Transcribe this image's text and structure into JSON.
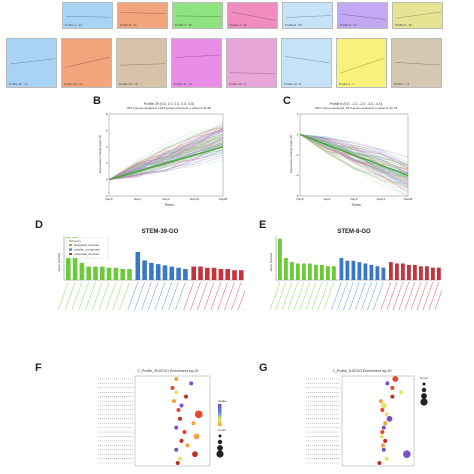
{
  "panels": {
    "A_tiles": [
      {
        "label": "Profile 1 : 14",
        "color": "#a9d3f5",
        "row": 0
      },
      {
        "label": "Profile 8 : 21",
        "color": "#f3a47c",
        "row": 0
      },
      {
        "label": "Profile 3 : 19",
        "color": "#8ee27f",
        "row": 0
      },
      {
        "label": "Profile 4 : 22",
        "color": "#f08cbf",
        "row": 0
      },
      {
        "label": "Profile 9 : 20",
        "color": "#c6e2f7",
        "row": 0
      },
      {
        "label": "Profile 5 : 17",
        "color": "#c3a9f3",
        "row": 0
      },
      {
        "label": "Profile 6 : 15",
        "color": "#e6e393",
        "row": 0
      },
      {
        "label": "Profile 15 : 12",
        "color": "#a9d3f5",
        "row": 1
      },
      {
        "label": "Profile 16 : 11",
        "color": "#f3a47c",
        "row": 1
      },
      {
        "label": "Profile 10 : 13",
        "color": "#d7c3a8",
        "row": 1
      },
      {
        "label": "Profile 11 : 10",
        "color": "#ea8de7",
        "row": 1
      },
      {
        "label": "Profile 12 : 9",
        "color": "#e8a6d8",
        "row": 1
      },
      {
        "label": "Profile 13 : 8",
        "color": "#c6e2f7",
        "row": 1
      },
      {
        "label": "Profile 2 : 7",
        "color": "#f6f27a",
        "row": 1
      },
      {
        "label": "Profile 7 : 6",
        "color": "#d6c7b3",
        "row": 1
      }
    ],
    "B": {
      "letter": "B",
      "title": "Profile 39 (0.0, 1.0, 2.0, 3.0, 4.0)",
      "subtitle": "202.0 genes assigned; 103.0 genes expected; p-value=1.2e-68",
      "ylabel": "Expression change (log2 v0)",
      "xlabel": "Times",
      "xticks": [
        "Day0",
        "Day1",
        "Day2",
        "Day14",
        "Day28"
      ],
      "yticks": [
        "-2",
        "0",
        "2",
        "4",
        "6",
        "8"
      ]
    },
    "C": {
      "letter": "C",
      "title": "Profile 8 (0.0, -1.0, -2.0, -3.0, -4.0)",
      "subtitle": "225.0 genes assigned; 52.0 genes expected; p-value=1.3e-75",
      "ylabel": "Expression change (log2 v0)",
      "xlabel": "Times",
      "xticks": [
        "Day0",
        "Day1",
        "Day2",
        "Day14",
        "Day28"
      ],
      "yticks": [
        "2",
        "0",
        "-2",
        "-4",
        "-6"
      ]
    },
    "D": {
      "letter": "D",
      "title": "STEM-39-GO",
      "ylabel": "Gene Number",
      "legend": [
        "GO term",
        "biological_process",
        "cellular_component",
        "molecular_function"
      ]
    },
    "E": {
      "letter": "E",
      "title": "STEM-8-GO",
      "ylabel": "Gene Number"
    },
    "F": {
      "letter": "F",
      "title": "C_Profile_39-KEGG Enrichment top 20",
      "legend_color_title": "qvalue",
      "legend_size_title": "Count"
    },
    "G": {
      "letter": "G",
      "title": "C_Profile_8-KEGG Enrichment top 20",
      "legend_size_title": "Count"
    }
  },
  "colors": {
    "bp": "#6cc93c",
    "cc": "#3b78c4",
    "mf": "#c8323a",
    "trend": "#47a62f"
  },
  "chart_data": [
    {
      "type": "line",
      "panel": "B",
      "x": [
        "Day0",
        "Day1",
        "Day2",
        "Day14",
        "Day28"
      ],
      "ylim": [
        -2,
        8
      ],
      "series": [
        {
          "values": [
            0,
            1,
            2,
            3,
            4
          ]
        }
      ]
    },
    {
      "type": "line",
      "panel": "C",
      "x": [
        "Day0",
        "Day1",
        "Day2",
        "Day14",
        "Day28"
      ],
      "ylim": [
        -6,
        2
      ],
      "series": [
        {
          "values": [
            0,
            -1,
            -2,
            -3,
            -4
          ]
        }
      ]
    },
    {
      "type": "bar",
      "panel": "D",
      "title": "STEM-39-GO",
      "groups": [
        {
          "name": "biological_process",
          "values": [
            35,
            35,
            14,
            11,
            11,
            11,
            10,
            10,
            9,
            9
          ]
        },
        {
          "name": "cellular_component",
          "values": [
            23,
            16,
            14,
            13,
            12,
            11,
            10,
            9
          ]
        },
        {
          "name": "molecular_function",
          "values": [
            11,
            11,
            10,
            10,
            9,
            9,
            8,
            8,
            8,
            7
          ]
        }
      ],
      "ylim": [
        0,
        36
      ]
    },
    {
      "type": "bar",
      "panel": "E",
      "title": "STEM-8-GO",
      "groups": [
        {
          "name": "biological_process",
          "values": [
            30,
            16,
            13,
            12,
            12,
            12,
            11,
            11,
            10,
            10
          ]
        },
        {
          "name": "cellular_component",
          "values": [
            16,
            14,
            14,
            13,
            12,
            11,
            10,
            9
          ]
        },
        {
          "name": "molecular_function",
          "values": [
            13,
            12,
            12,
            11,
            11,
            10,
            10,
            9,
            9,
            8
          ]
        }
      ],
      "ylim": [
        0,
        32
      ]
    },
    {
      "type": "scatter",
      "panel": "F",
      "title": "C_Profile_39-KEGG Enrichment top 20",
      "points": [
        {
          "row": 0,
          "x": 0.55,
          "size": 1,
          "q": 0.0
        },
        {
          "row": 1,
          "x": 0.75,
          "size": 1,
          "q": 0.0
        },
        {
          "row": 2,
          "x": 0.5,
          "size": 1,
          "q": 0.0
        },
        {
          "row": 3,
          "x": 0.55,
          "size": 1,
          "q": 0.0
        },
        {
          "row": 4,
          "x": 0.68,
          "size": 1,
          "q": 0.0
        },
        {
          "row": 5,
          "x": 0.52,
          "size": 1,
          "q": 0.0
        },
        {
          "row": 6,
          "x": 0.62,
          "size": 1,
          "q": 0.0
        },
        {
          "row": 7,
          "x": 0.58,
          "size": 1,
          "q": 0.0
        },
        {
          "row": 8,
          "x": 0.85,
          "size": 3,
          "q": 0.0
        },
        {
          "row": 9,
          "x": 0.6,
          "size": 1,
          "q": 0.0
        },
        {
          "row": 10,
          "x": 0.78,
          "size": 1,
          "q": 0.0
        },
        {
          "row": 11,
          "x": 0.55,
          "size": 1,
          "q": 0.0
        },
        {
          "row": 12,
          "x": 0.66,
          "size": 1,
          "q": 0.0
        },
        {
          "row": 13,
          "x": 0.82,
          "size": 2,
          "q": 0.0
        },
        {
          "row": 14,
          "x": 0.62,
          "size": 1,
          "q": 0.0
        },
        {
          "row": 15,
          "x": 0.7,
          "size": 1,
          "q": 0.0
        },
        {
          "row": 16,
          "x": 0.55,
          "size": 1,
          "q": 0.0
        },
        {
          "row": 17,
          "x": 0.8,
          "size": 2,
          "q": 0.0
        },
        {
          "row": 18,
          "x": 0.6,
          "size": 1,
          "q": 0.0
        },
        {
          "row": 19,
          "x": 0.57,
          "size": 1,
          "q": 0.0
        }
      ]
    },
    {
      "type": "scatter",
      "panel": "G",
      "title": "C_Profile_8-KEGG Enrichment top 20",
      "points": [
        {
          "row": 0,
          "x": 0.74,
          "size": 2,
          "q": 0.0
        },
        {
          "row": 1,
          "x": 0.63,
          "size": 1,
          "q": 0.0
        },
        {
          "row": 2,
          "x": 0.7,
          "size": 1,
          "q": 0.0
        },
        {
          "row": 3,
          "x": 0.82,
          "size": 1,
          "q": 0.0
        },
        {
          "row": 4,
          "x": 0.7,
          "size": 1,
          "q": 0.0
        },
        {
          "row": 5,
          "x": 0.54,
          "size": 1,
          "q": 0.0
        },
        {
          "row": 6,
          "x": 0.58,
          "size": 2,
          "q": 0.0
        },
        {
          "row": 7,
          "x": 0.56,
          "size": 1,
          "q": 0.0
        },
        {
          "row": 8,
          "x": 0.62,
          "size": 1,
          "q": 0.0
        },
        {
          "row": 9,
          "x": 0.66,
          "size": 2,
          "q": 0.0
        },
        {
          "row": 10,
          "x": 0.6,
          "size": 1,
          "q": 0.0
        },
        {
          "row": 11,
          "x": 0.58,
          "size": 1,
          "q": 0.0
        },
        {
          "row": 12,
          "x": 0.56,
          "size": 1,
          "q": 0.0
        },
        {
          "row": 13,
          "x": 0.55,
          "size": 1,
          "q": 0.0
        },
        {
          "row": 14,
          "x": 0.6,
          "size": 1,
          "q": 0.0
        },
        {
          "row": 15,
          "x": 0.57,
          "size": 1,
          "q": 0.0
        },
        {
          "row": 16,
          "x": 0.58,
          "size": 1,
          "q": 0.0
        },
        {
          "row": 17,
          "x": 0.9,
          "size": 3,
          "q": 0.0
        },
        {
          "row": 18,
          "x": 0.62,
          "size": 1,
          "q": 0.0
        },
        {
          "row": 19,
          "x": 0.52,
          "size": 1,
          "q": 0.0
        }
      ]
    }
  ]
}
